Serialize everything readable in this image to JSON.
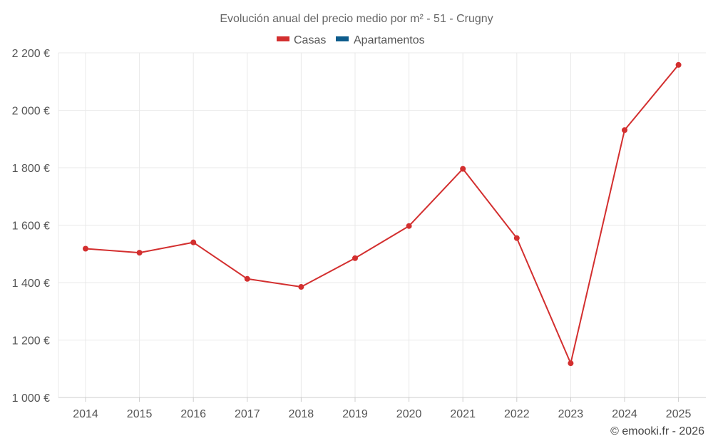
{
  "chart_data": {
    "type": "line",
    "title": "Evolución anual del precio medio por m² - 51 - Crugny",
    "legend": [
      {
        "name": "Casas",
        "color": "#d32f2f"
      },
      {
        "name": "Apartamentos",
        "color": "#0d5c8c"
      }
    ],
    "categories": [
      "2014",
      "2015",
      "2016",
      "2017",
      "2018",
      "2019",
      "2020",
      "2021",
      "2022",
      "2023",
      "2024",
      "2025"
    ],
    "series": [
      {
        "name": "Casas",
        "color": "#d32f2f",
        "values": [
          1518,
          1504,
          1540,
          1413,
          1385,
          1485,
          1597,
          1796,
          1555,
          1119,
          1931,
          2158
        ]
      }
    ],
    "yticks": [
      1000,
      1200,
      1400,
      1600,
      1800,
      2000,
      2200
    ],
    "ytick_labels": [
      "1 000 €",
      "1 200 €",
      "1 400 €",
      "1 600 €",
      "1 800 €",
      "2 000 €",
      "2 200 €"
    ],
    "ylim": [
      1000,
      2200
    ],
    "xlabel": "",
    "ylabel": "",
    "grid": true,
    "legend_position": "top-center"
  },
  "credit": "© emooki.fr - 2026"
}
